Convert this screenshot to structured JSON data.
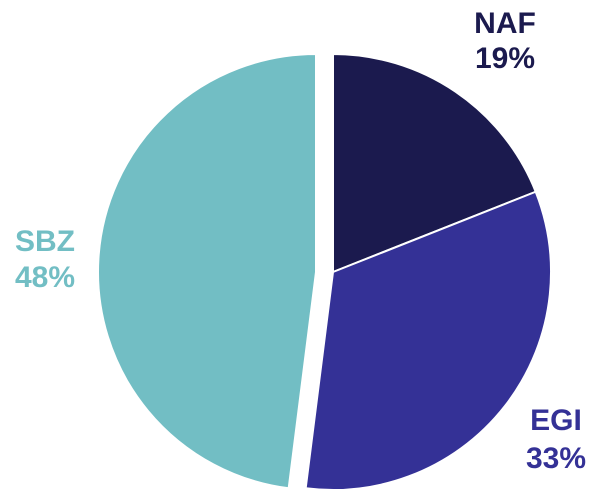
{
  "chart_data": {
    "type": "pie",
    "categories": [
      "NAF",
      "EGI",
      "SBZ"
    ],
    "values": [
      19,
      33,
      48
    ],
    "value_labels": [
      "19%",
      "33%",
      "48%"
    ],
    "colors": [
      "#1b1a4e",
      "#343196",
      "#72bec4"
    ]
  }
}
